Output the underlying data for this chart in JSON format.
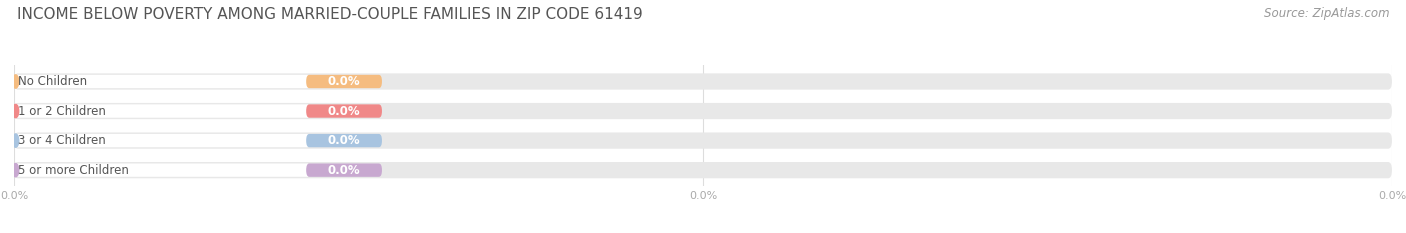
{
  "title": "INCOME BELOW POVERTY AMONG MARRIED-COUPLE FAMILIES IN ZIP CODE 61419",
  "source": "Source: ZipAtlas.com",
  "categories": [
    "No Children",
    "1 or 2 Children",
    "3 or 4 Children",
    "5 or more Children"
  ],
  "values": [
    0.0,
    0.0,
    0.0,
    0.0
  ],
  "bar_colors": [
    "#f5bc80",
    "#f08888",
    "#a8c4e0",
    "#c8a8d0"
  ],
  "bar_bg_color": "#e8e8e8",
  "bar_white_color": "#ffffff",
  "background_color": "#ffffff",
  "label_text_color": "#555555",
  "value_label_color": "#ffffff",
  "tick_label_color": "#aaaaaa",
  "title_color": "#555555",
  "source_color": "#999999",
  "title_fontsize": 11,
  "label_fontsize": 8.5,
  "value_fontsize": 8.5,
  "source_fontsize": 8.5,
  "grid_color": "#dddddd",
  "n_ticks": 3,
  "tick_values": [
    0.0,
    50.0,
    100.0
  ],
  "tick_labels": [
    "0.0%",
    "0.0%",
    "0.0%"
  ]
}
